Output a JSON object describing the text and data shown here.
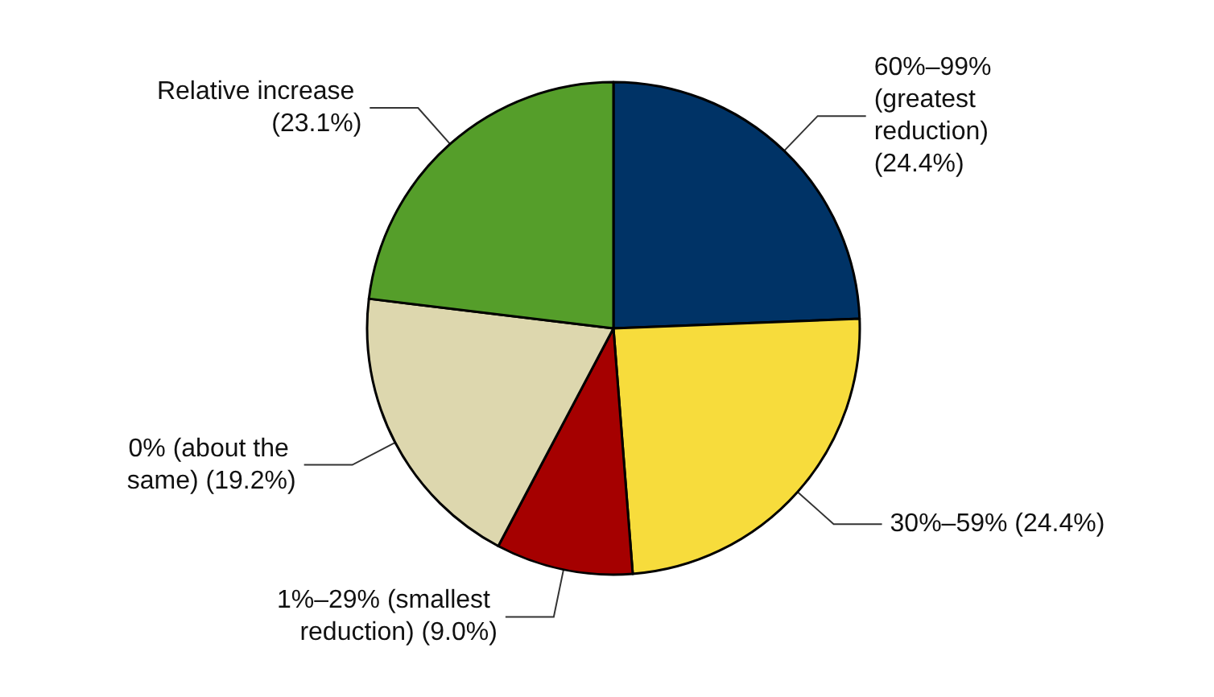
{
  "chart_data": {
    "type": "pie",
    "categories": [
      "60%–99% (greatest reduction)",
      "30%–59%",
      "1%–29% (smallest reduction)",
      "0% (about the same)",
      "Relative increase"
    ],
    "values": [
      24.4,
      24.4,
      9.0,
      19.2,
      23.1
    ],
    "colors": [
      "#003366",
      "#f7dc3c",
      "#a50000",
      "#ddd7ae",
      "#559e2a"
    ],
    "value_labels": [
      "(24.4%)",
      "(24.4%)",
      "(9.0%)",
      "(19.2%)",
      "(23.1%)"
    ],
    "legend": false
  }
}
